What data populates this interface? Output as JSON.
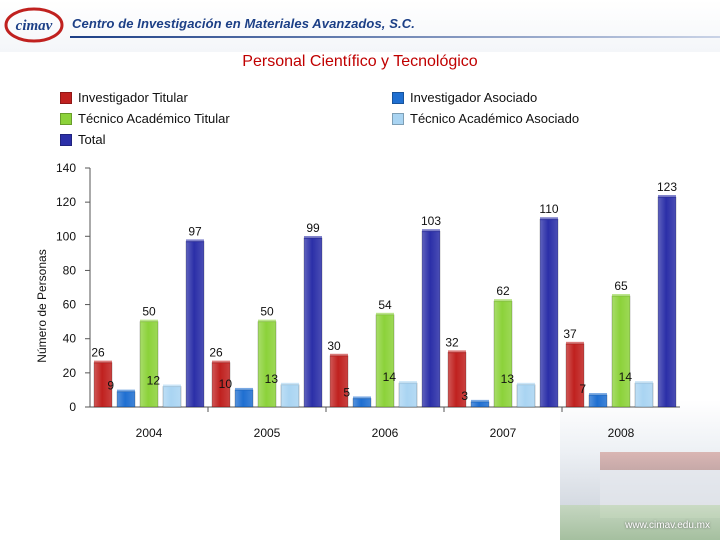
{
  "header": {
    "logo_text": "cimav",
    "org_name": "Centro de Investigación en Materiales Avanzados, S.C."
  },
  "footer": {
    "website": "www.cimav.edu.mx"
  },
  "chart_data": {
    "type": "bar",
    "title": "Personal Científico y Tecnológico",
    "xlabel": "",
    "ylabel": "Número de Personas",
    "categories": [
      "2004",
      "2005",
      "2006",
      "2007",
      "2008"
    ],
    "ylim": [
      0,
      140
    ],
    "yticks": [
      0,
      20,
      40,
      60,
      80,
      100,
      120,
      140
    ],
    "legend_position": "top",
    "grid": false,
    "series": [
      {
        "name": "Investigador Titular",
        "color": "#c0211f",
        "values": [
          26,
          26,
          30,
          32,
          37
        ]
      },
      {
        "name": "Investigador Asociado",
        "color": "#1f6fd1",
        "values": [
          9,
          10,
          5,
          3,
          7
        ]
      },
      {
        "name": "Técnico Académico Titular",
        "color": "#8cd23a",
        "values": [
          50,
          50,
          54,
          62,
          65
        ]
      },
      {
        "name": "Técnico Académico Asociado",
        "color": "#a9d4f2",
        "values": [
          12,
          13,
          14,
          13,
          14
        ]
      },
      {
        "name": "Total",
        "color": "#2b2fa8",
        "values": [
          97,
          99,
          103,
          110,
          123
        ]
      }
    ]
  }
}
